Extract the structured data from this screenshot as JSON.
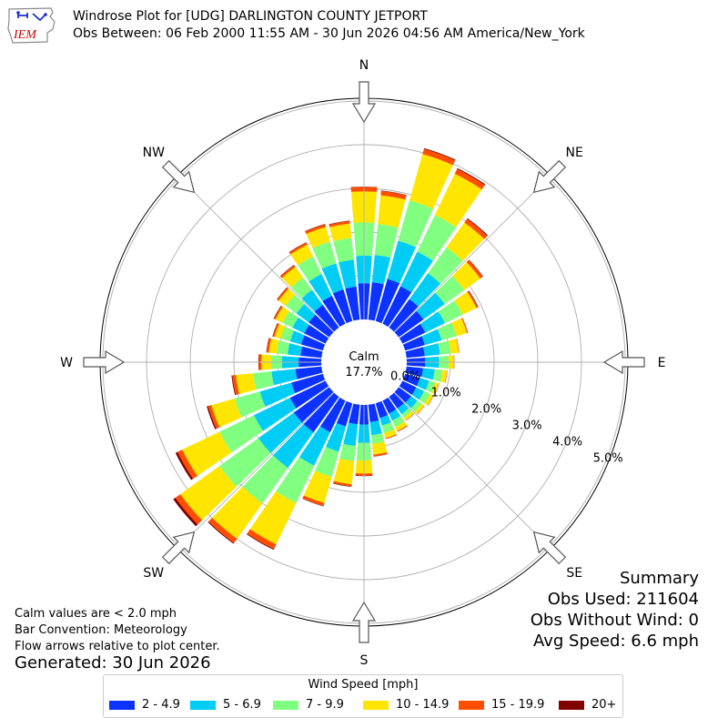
{
  "header": {
    "title_line1": "Windrose Plot for [UDG] DARLINGTON COUNTY JETPORT",
    "title_line2": "Obs Between: 06 Feb 2000 11:55 AM - 30 Jun 2026 04:56 AM America/New_York",
    "logo_text": "IEM"
  },
  "notes": {
    "calm": "Calm values are < 2.0 mph",
    "convention": "Bar Convention: Meteorology",
    "arrows": "Flow arrows relative to plot center.",
    "generated": "Generated: 30 Jun 2026"
  },
  "summary": {
    "heading": "Summary",
    "obs_used": "Obs Used: 211604",
    "obs_without_wind": "Obs Without Wind: 0",
    "avg_speed": "Avg Speed: 6.6 mph"
  },
  "colors": {
    "accent": "#c0c0c0",
    "calm_circle": "#ffffff",
    "logo": "#1c2fd0",
    "logo_text": "#cc0000"
  },
  "chart_data": {
    "type": "windrose",
    "center_label": "Calm",
    "center_value": "17.7%",
    "compass": [
      "N",
      "NE",
      "E",
      "SE",
      "S",
      "SW",
      "W",
      "NW"
    ],
    "radial_ticks": [
      "0.0%",
      "1.0%",
      "2.0%",
      "3.0%",
      "4.0%",
      "5.0%"
    ],
    "radial_range": [
      0,
      5.5
    ],
    "legend_title": "Wind Speed [mph]",
    "bins": [
      {
        "label": "2 - 4.9",
        "color": "#0b32ff"
      },
      {
        "label": "5 - 6.9",
        "color": "#00cdf5"
      },
      {
        "label": "7 - 9.9",
        "color": "#80ff80"
      },
      {
        "label": "10 - 14.9",
        "color": "#ffe500"
      },
      {
        "label": "15 - 19.9",
        "color": "#ff4e00"
      },
      {
        "label": "20+",
        "color": "#800000"
      }
    ],
    "directions_deg": [
      0,
      10,
      20,
      30,
      40,
      50,
      60,
      70,
      80,
      90,
      100,
      110,
      120,
      130,
      140,
      150,
      160,
      170,
      180,
      190,
      200,
      210,
      220,
      230,
      240,
      250,
      260,
      270,
      280,
      290,
      300,
      310,
      320,
      330,
      340,
      350
    ],
    "values": [
      [
        0.83,
        0.63,
        0.76,
        0.71,
        0.1,
        0.01
      ],
      [
        0.86,
        0.63,
        0.71,
        0.66,
        0.1,
        0.01
      ],
      [
        1.0,
        0.91,
        0.96,
        1.1,
        0.12,
        0.02
      ],
      [
        0.95,
        0.88,
        0.93,
        1.05,
        0.12,
        0.02
      ],
      [
        0.8,
        0.73,
        0.73,
        0.7,
        0.1,
        0.02
      ],
      [
        0.7,
        0.6,
        0.55,
        0.45,
        0.07,
        0.01
      ],
      [
        0.58,
        0.5,
        0.45,
        0.35,
        0.04,
        0.01
      ],
      [
        0.47,
        0.4,
        0.35,
        0.25,
        0.02,
        0.005
      ],
      [
        0.42,
        0.35,
        0.25,
        0.18,
        0.01,
        0.003
      ],
      [
        0.42,
        0.32,
        0.22,
        0.12,
        0.01,
        0.002
      ],
      [
        0.38,
        0.27,
        0.18,
        0.1,
        0.01,
        0.002
      ],
      [
        0.35,
        0.22,
        0.15,
        0.08,
        0.01,
        0.002
      ],
      [
        0.35,
        0.2,
        0.15,
        0.08,
        0.01,
        0.002
      ],
      [
        0.35,
        0.18,
        0.12,
        0.07,
        0.01,
        0.002
      ],
      [
        0.33,
        0.16,
        0.1,
        0.07,
        0.01,
        0.002
      ],
      [
        0.33,
        0.18,
        0.16,
        0.1,
        0.02,
        0.003
      ],
      [
        0.35,
        0.18,
        0.18,
        0.12,
        0.02,
        0.003
      ],
      [
        0.4,
        0.3,
        0.2,
        0.25,
        0.04,
        0.005
      ],
      [
        0.45,
        0.42,
        0.4,
        0.3,
        0.05,
        0.01
      ],
      [
        0.45,
        0.5,
        0.35,
        0.53,
        0.05,
        0.01
      ],
      [
        0.55,
        0.6,
        0.6,
        0.62,
        0.07,
        0.01
      ],
      [
        0.8,
        0.85,
        0.95,
        1.05,
        0.12,
        0.02
      ],
      [
        1.0,
        1.0,
        1.0,
        1.0,
        0.12,
        0.02
      ],
      [
        1.0,
        1.0,
        1.1,
        1.1,
        0.14,
        0.06
      ],
      [
        0.9,
        0.92,
        0.87,
        0.95,
        0.12,
        0.05
      ],
      [
        0.75,
        0.75,
        0.6,
        0.55,
        0.08,
        0.03
      ],
      [
        0.6,
        0.55,
        0.42,
        0.4,
        0.08,
        0.02
      ],
      [
        0.52,
        0.38,
        0.25,
        0.22,
        0.06,
        0.01
      ],
      [
        0.48,
        0.3,
        0.25,
        0.18,
        0.05,
        0.01
      ],
      [
        0.52,
        0.26,
        0.22,
        0.15,
        0.04,
        0.01
      ],
      [
        0.54,
        0.3,
        0.25,
        0.18,
        0.04,
        0.01
      ],
      [
        0.58,
        0.35,
        0.3,
        0.2,
        0.04,
        0.01
      ],
      [
        0.64,
        0.42,
        0.35,
        0.3,
        0.05,
        0.01
      ],
      [
        0.71,
        0.55,
        0.45,
        0.3,
        0.05,
        0.01
      ],
      [
        0.75,
        0.62,
        0.52,
        0.35,
        0.06,
        0.01
      ],
      [
        0.76,
        0.62,
        0.5,
        0.33,
        0.06,
        0.01
      ]
    ]
  }
}
